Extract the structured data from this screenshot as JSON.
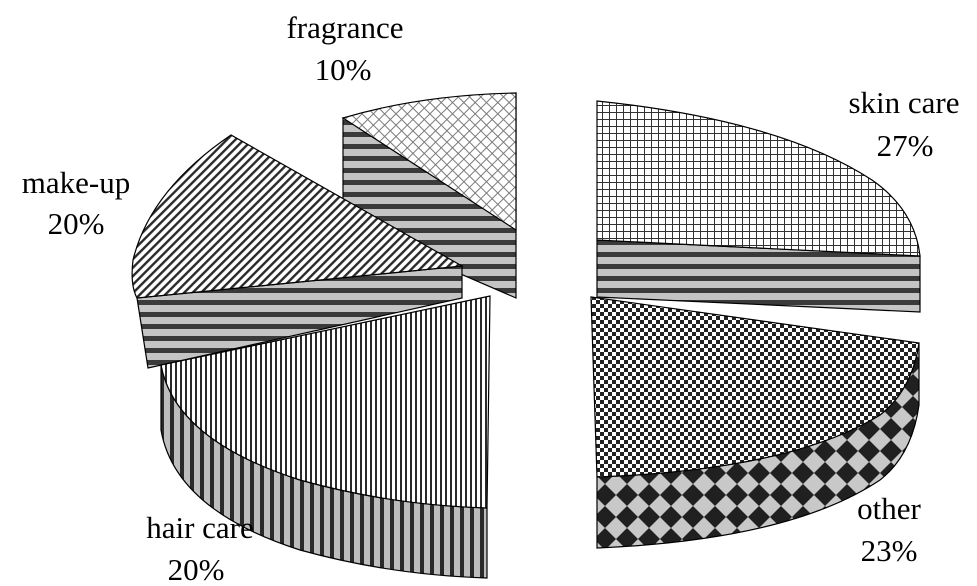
{
  "chart_data": {
    "type": "pie",
    "style": "3d-exploded",
    "fill": "monochrome patterns",
    "slices": [
      {
        "label": "skin care",
        "value": 27,
        "value_label": "27%",
        "pattern": "grid"
      },
      {
        "label": "other",
        "value": 23,
        "value_label": "23%",
        "pattern": "checker"
      },
      {
        "label": "hair care",
        "value": 20,
        "value_label": "20%",
        "pattern": "vertical-lines"
      },
      {
        "label": "make-up",
        "value": 20,
        "value_label": "20%",
        "pattern": "diagonal-lines"
      },
      {
        "label": "fragrance",
        "value": 10,
        "value_label": "10%",
        "pattern": "crosshatch"
      }
    ],
    "colors": {
      "edge": "#000000",
      "side": "#555555",
      "background": "#ffffff"
    }
  }
}
